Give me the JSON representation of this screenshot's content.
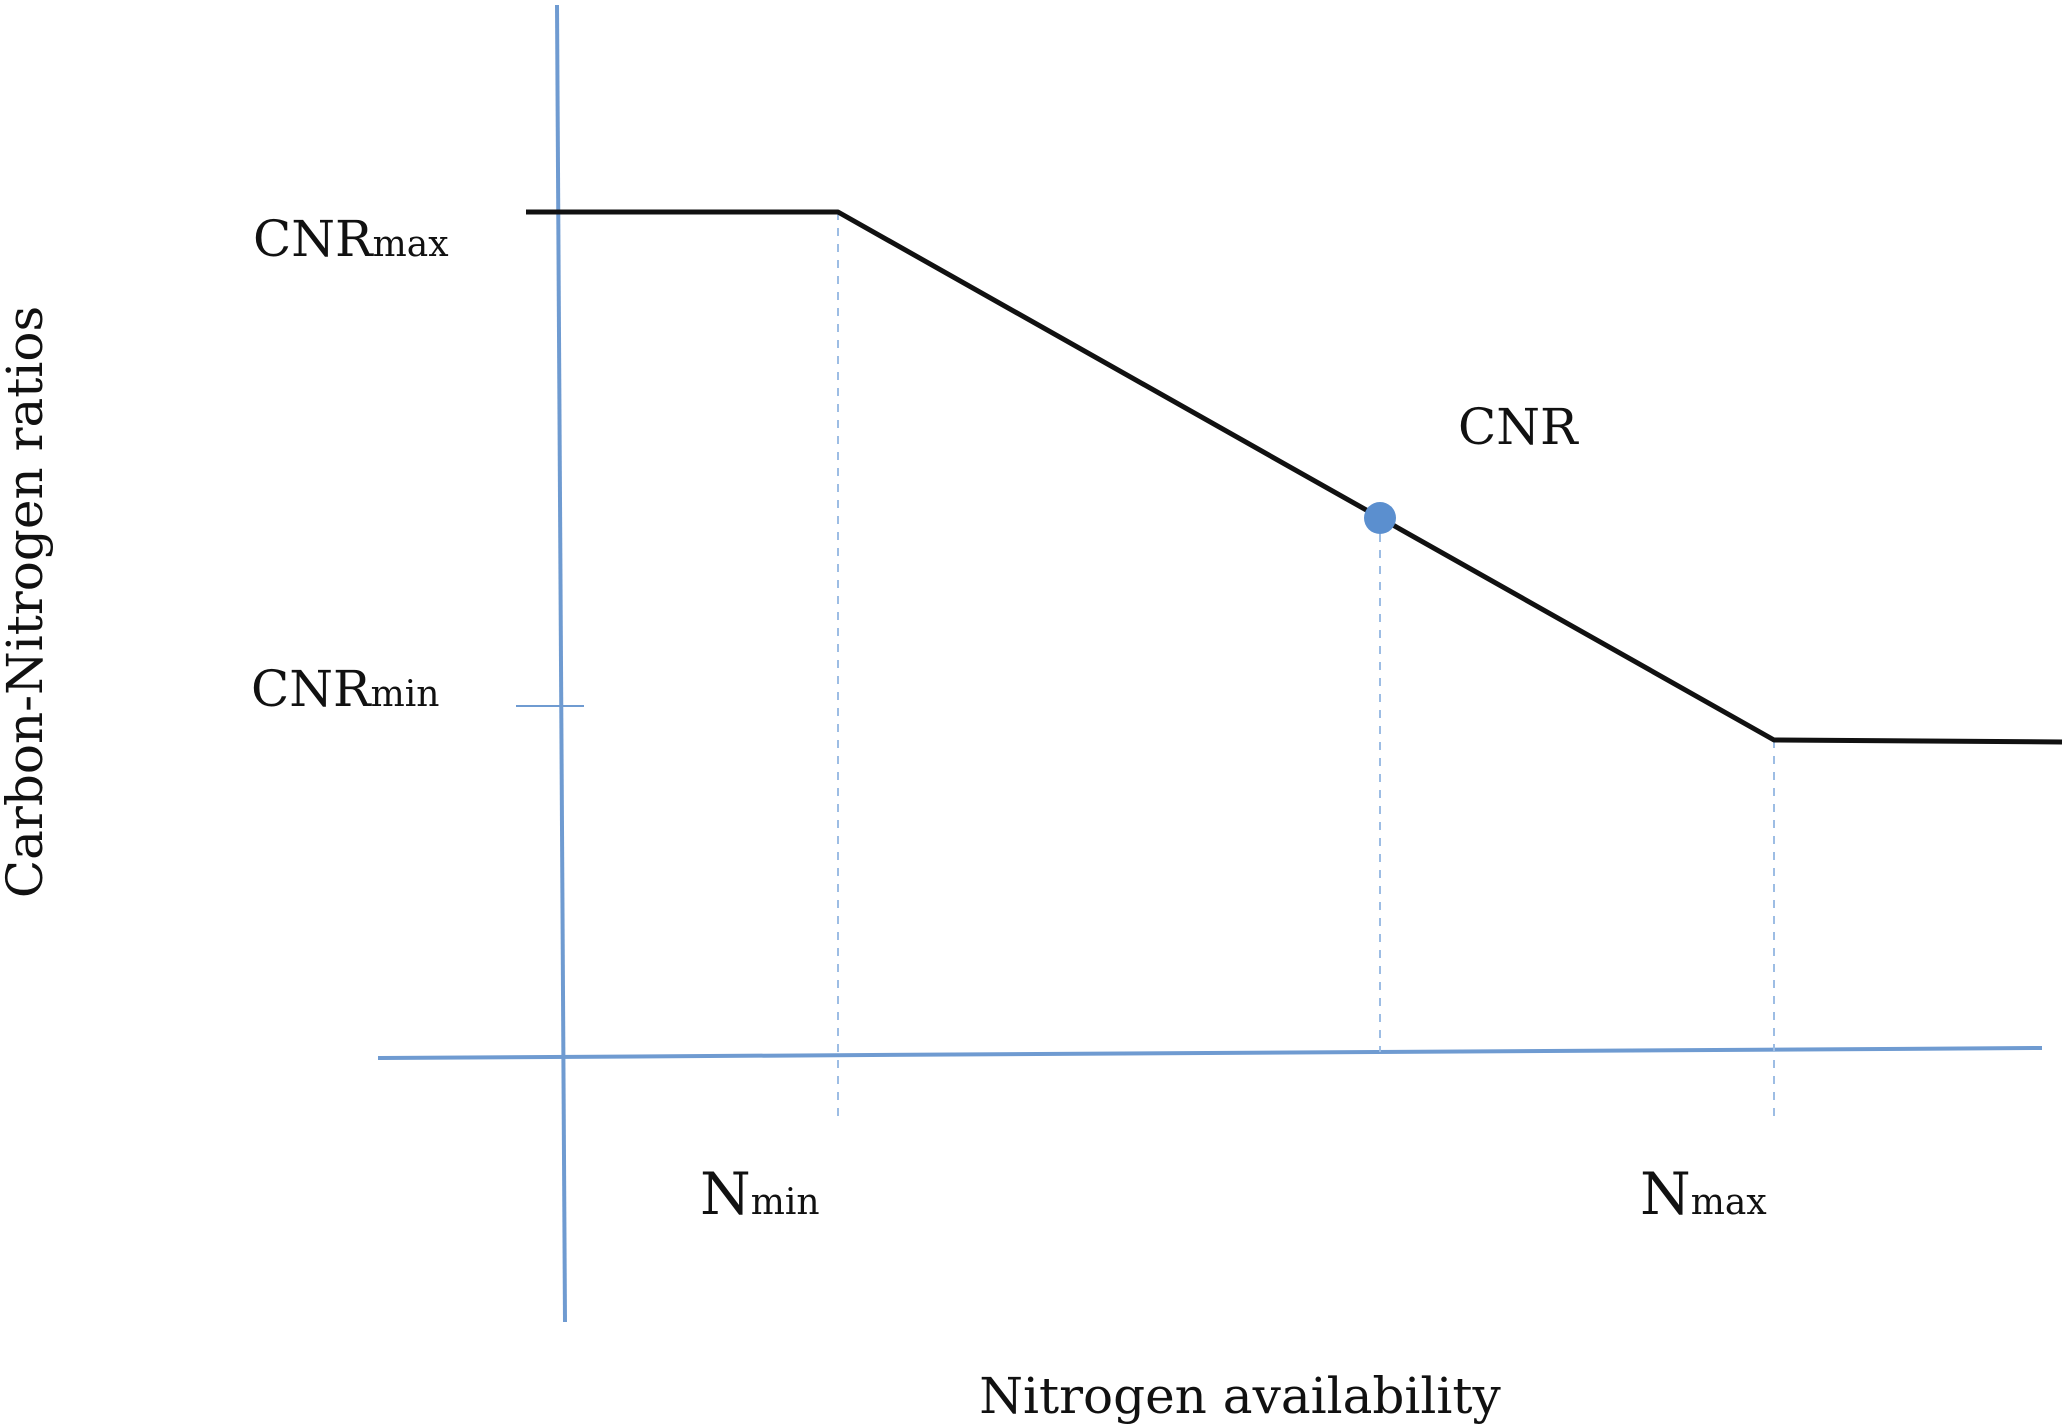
{
  "labels": {
    "y_axis_title": "Carbon-Nitrogen ratios",
    "x_axis_title": "Nitrogen availability",
    "cnr_max": {
      "base": "CNR",
      "sub": "max"
    },
    "cnr_min": {
      "base": "CNR",
      "sub": "min"
    },
    "n_min": {
      "base": "N",
      "sub": "min"
    },
    "n_max": {
      "base": "N",
      "sub": "max"
    },
    "point": "CNR"
  },
  "colors": {
    "axis": "#6f9bd1",
    "guide": "#9dbde4",
    "curve": "#111111",
    "point": "#5b8fcf"
  },
  "icons": {
    "point_marker": "filled-circle"
  }
}
